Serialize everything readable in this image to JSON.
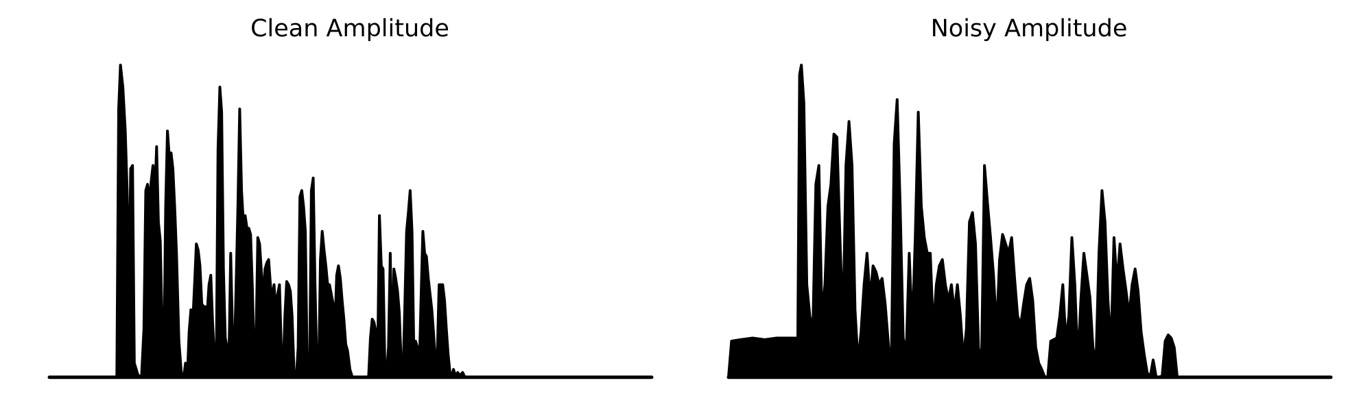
{
  "chart_data": [
    {
      "type": "area",
      "title": "Clean Amplitude",
      "xlabel": "",
      "ylabel": "",
      "axes_visible": false,
      "grid": false,
      "ylim": [
        0,
        1
      ],
      "baseline": 0.005,
      "color": "#000000",
      "segments": [
        [
          0.0,
          0.005
        ],
        [
          0.112,
          0.005
        ],
        [
          0.115,
          0.86
        ],
        [
          0.118,
          1.0
        ],
        [
          0.122,
          0.93
        ],
        [
          0.126,
          0.79
        ],
        [
          0.129,
          0.6
        ],
        [
          0.132,
          0.27
        ],
        [
          0.135,
          0.67
        ],
        [
          0.138,
          0.68
        ],
        [
          0.141,
          0.05
        ],
        [
          0.147,
          0.012
        ],
        [
          0.153,
          0.005
        ],
        [
          0.157,
          0.16
        ],
        [
          0.16,
          0.6
        ],
        [
          0.163,
          0.62
        ],
        [
          0.166,
          0.56
        ],
        [
          0.169,
          0.63
        ],
        [
          0.172,
          0.68
        ],
        [
          0.175,
          0.58
        ],
        [
          0.178,
          0.74
        ],
        [
          0.181,
          0.5
        ],
        [
          0.184,
          0.44
        ],
        [
          0.187,
          0.18
        ],
        [
          0.19,
          0.05
        ],
        [
          0.193,
          0.55
        ],
        [
          0.196,
          0.79
        ],
        [
          0.199,
          0.71
        ],
        [
          0.202,
          0.72
        ],
        [
          0.205,
          0.67
        ],
        [
          0.208,
          0.55
        ],
        [
          0.211,
          0.4
        ],
        [
          0.215,
          0.12
        ],
        [
          0.219,
          0.02
        ],
        [
          0.223,
          0.005
        ],
        [
          0.226,
          0.05
        ],
        [
          0.229,
          0.005
        ],
        [
          0.232,
          0.15
        ],
        [
          0.235,
          0.22
        ],
        [
          0.238,
          0.18
        ],
        [
          0.241,
          0.3
        ],
        [
          0.244,
          0.43
        ],
        [
          0.247,
          0.41
        ],
        [
          0.25,
          0.36
        ],
        [
          0.253,
          0.24
        ],
        [
          0.256,
          0.23
        ],
        [
          0.259,
          0.23
        ],
        [
          0.262,
          0.21
        ],
        [
          0.265,
          0.3
        ],
        [
          0.268,
          0.33
        ],
        [
          0.271,
          0.18
        ],
        [
          0.274,
          0.07
        ],
        [
          0.277,
          0.005
        ],
        [
          0.28,
          0.73
        ],
        [
          0.283,
          0.93
        ],
        [
          0.286,
          0.85
        ],
        [
          0.289,
          0.35
        ],
        [
          0.292,
          0.13
        ],
        [
          0.295,
          0.1
        ],
        [
          0.298,
          0.05
        ],
        [
          0.301,
          0.4
        ],
        [
          0.304,
          0.15
        ],
        [
          0.307,
          0.05
        ],
        [
          0.31,
          0.3
        ],
        [
          0.313,
          0.55
        ],
        [
          0.316,
          0.86
        ],
        [
          0.319,
          0.6
        ],
        [
          0.322,
          0.5
        ],
        [
          0.325,
          0.52
        ],
        [
          0.328,
          0.48
        ],
        [
          0.331,
          0.48
        ],
        [
          0.334,
          0.46
        ],
        [
          0.337,
          0.29
        ],
        [
          0.34,
          0.07
        ],
        [
          0.343,
          0.12
        ],
        [
          0.346,
          0.45
        ],
        [
          0.349,
          0.43
        ],
        [
          0.352,
          0.34
        ],
        [
          0.355,
          0.25
        ],
        [
          0.358,
          0.35
        ],
        [
          0.361,
          0.37
        ],
        [
          0.364,
          0.38
        ],
        [
          0.367,
          0.3
        ],
        [
          0.37,
          0.25
        ],
        [
          0.373,
          0.3
        ],
        [
          0.376,
          0.21
        ],
        [
          0.379,
          0.27
        ],
        [
          0.382,
          0.3
        ],
        [
          0.385,
          0.1
        ],
        [
          0.388,
          0.02
        ],
        [
          0.391,
          0.2
        ],
        [
          0.394,
          0.31
        ],
        [
          0.397,
          0.3
        ],
        [
          0.4,
          0.28
        ],
        [
          0.403,
          0.2
        ],
        [
          0.406,
          0.03
        ],
        [
          0.41,
          0.005
        ],
        [
          0.413,
          0.1
        ],
        [
          0.416,
          0.58
        ],
        [
          0.419,
          0.6
        ],
        [
          0.422,
          0.55
        ],
        [
          0.425,
          0.47
        ],
        [
          0.428,
          0.05
        ],
        [
          0.432,
          0.005
        ],
        [
          0.435,
          0.6
        ],
        [
          0.438,
          0.64
        ],
        [
          0.441,
          0.3
        ],
        [
          0.444,
          0.05
        ],
        [
          0.447,
          0.005
        ],
        [
          0.45,
          0.38
        ],
        [
          0.453,
          0.47
        ],
        [
          0.456,
          0.41
        ],
        [
          0.459,
          0.36
        ],
        [
          0.462,
          0.3
        ],
        [
          0.465,
          0.3
        ],
        [
          0.468,
          0.27
        ],
        [
          0.471,
          0.24
        ],
        [
          0.474,
          0.16
        ],
        [
          0.477,
          0.33
        ],
        [
          0.48,
          0.36
        ],
        [
          0.483,
          0.32
        ],
        [
          0.486,
          0.25
        ],
        [
          0.489,
          0.19
        ],
        [
          0.492,
          0.11
        ],
        [
          0.495,
          0.09
        ],
        [
          0.499,
          0.03
        ],
        [
          0.503,
          0.005
        ],
        [
          0.53,
          0.005
        ],
        [
          0.533,
          0.13
        ],
        [
          0.536,
          0.19
        ],
        [
          0.539,
          0.18
        ],
        [
          0.542,
          0.15
        ],
        [
          0.545,
          0.06
        ],
        [
          0.548,
          0.52
        ],
        [
          0.551,
          0.36
        ],
        [
          0.554,
          0.35
        ],
        [
          0.557,
          0.05
        ],
        [
          0.56,
          0.02
        ],
        [
          0.563,
          0.1
        ],
        [
          0.566,
          0.4
        ],
        [
          0.569,
          0.05
        ],
        [
          0.572,
          0.35
        ],
        [
          0.575,
          0.32
        ],
        [
          0.578,
          0.28
        ],
        [
          0.581,
          0.21
        ],
        [
          0.584,
          0.05
        ],
        [
          0.587,
          0.005
        ],
        [
          0.59,
          0.22
        ],
        [
          0.593,
          0.47
        ],
        [
          0.596,
          0.53
        ],
        [
          0.599,
          0.6
        ],
        [
          0.602,
          0.47
        ],
        [
          0.605,
          0.1
        ],
        [
          0.608,
          0.12
        ],
        [
          0.611,
          0.1
        ],
        [
          0.614,
          0.02
        ],
        [
          0.617,
          0.25
        ],
        [
          0.62,
          0.47
        ],
        [
          0.623,
          0.4
        ],
        [
          0.626,
          0.39
        ],
        [
          0.629,
          0.32
        ],
        [
          0.632,
          0.27
        ],
        [
          0.635,
          0.22
        ],
        [
          0.638,
          0.14
        ],
        [
          0.641,
          0.05
        ],
        [
          0.644,
          0.07
        ],
        [
          0.647,
          0.3
        ],
        [
          0.65,
          0.3
        ],
        [
          0.653,
          0.3
        ],
        [
          0.656,
          0.25
        ],
        [
          0.659,
          0.16
        ],
        [
          0.662,
          0.08
        ],
        [
          0.665,
          0.02
        ],
        [
          0.668,
          0.01
        ],
        [
          0.671,
          0.03
        ],
        [
          0.674,
          0.01
        ],
        [
          0.678,
          0.02
        ],
        [
          0.682,
          0.01
        ],
        [
          0.686,
          0.02
        ],
        [
          0.69,
          0.005
        ],
        [
          1.0,
          0.005
        ]
      ]
    },
    {
      "type": "area",
      "title": "Noisy Amplitude",
      "xlabel": "",
      "ylabel": "",
      "axes_visible": false,
      "grid": false,
      "ylim": [
        0,
        1
      ],
      "baseline": 0.005,
      "color": "#000000",
      "segments": [
        [
          0.0,
          0.005
        ],
        [
          0.005,
          0.12
        ],
        [
          0.02,
          0.125
        ],
        [
          0.04,
          0.13
        ],
        [
          0.06,
          0.125
        ],
        [
          0.08,
          0.13
        ],
        [
          0.1,
          0.13
        ],
        [
          0.115,
          0.13
        ],
        [
          0.118,
          0.97
        ],
        [
          0.121,
          1.0
        ],
        [
          0.125,
          0.88
        ],
        [
          0.13,
          0.3
        ],
        [
          0.135,
          0.2
        ],
        [
          0.14,
          0.15
        ],
        [
          0.145,
          0.62
        ],
        [
          0.15,
          0.68
        ],
        [
          0.155,
          0.2
        ],
        [
          0.16,
          0.3
        ],
        [
          0.165,
          0.55
        ],
        [
          0.17,
          0.62
        ],
        [
          0.175,
          0.78
        ],
        [
          0.18,
          0.77
        ],
        [
          0.185,
          0.45
        ],
        [
          0.19,
          0.17
        ],
        [
          0.195,
          0.68
        ],
        [
          0.2,
          0.82
        ],
        [
          0.205,
          0.68
        ],
        [
          0.21,
          0.22
        ],
        [
          0.215,
          0.05
        ],
        [
          0.22,
          0.15
        ],
        [
          0.225,
          0.3
        ],
        [
          0.23,
          0.4
        ],
        [
          0.235,
          0.25
        ],
        [
          0.24,
          0.36
        ],
        [
          0.245,
          0.34
        ],
        [
          0.25,
          0.3
        ],
        [
          0.255,
          0.32
        ],
        [
          0.26,
          0.24
        ],
        [
          0.265,
          0.12
        ],
        [
          0.27,
          0.005
        ],
        [
          0.275,
          0.75
        ],
        [
          0.28,
          0.89
        ],
        [
          0.285,
          0.55
        ],
        [
          0.29,
          0.13
        ],
        [
          0.295,
          0.08
        ],
        [
          0.3,
          0.4
        ],
        [
          0.305,
          0.15
        ],
        [
          0.31,
          0.45
        ],
        [
          0.315,
          0.85
        ],
        [
          0.32,
          0.55
        ],
        [
          0.325,
          0.45
        ],
        [
          0.33,
          0.4
        ],
        [
          0.335,
          0.4
        ],
        [
          0.34,
          0.15
        ],
        [
          0.345,
          0.3
        ],
        [
          0.35,
          0.36
        ],
        [
          0.355,
          0.38
        ],
        [
          0.36,
          0.3
        ],
        [
          0.365,
          0.25
        ],
        [
          0.37,
          0.3
        ],
        [
          0.375,
          0.21
        ],
        [
          0.38,
          0.3
        ],
        [
          0.385,
          0.2
        ],
        [
          0.39,
          0.06
        ],
        [
          0.395,
          0.16
        ],
        [
          0.4,
          0.5
        ],
        [
          0.405,
          0.53
        ],
        [
          0.41,
          0.43
        ],
        [
          0.415,
          0.1
        ],
        [
          0.42,
          0.05
        ],
        [
          0.425,
          0.68
        ],
        [
          0.43,
          0.56
        ],
        [
          0.435,
          0.45
        ],
        [
          0.44,
          0.33
        ],
        [
          0.445,
          0.15
        ],
        [
          0.45,
          0.38
        ],
        [
          0.455,
          0.46
        ],
        [
          0.46,
          0.43
        ],
        [
          0.465,
          0.4
        ],
        [
          0.47,
          0.45
        ],
        [
          0.475,
          0.32
        ],
        [
          0.48,
          0.2
        ],
        [
          0.485,
          0.17
        ],
        [
          0.49,
          0.24
        ],
        [
          0.495,
          0.3
        ],
        [
          0.5,
          0.32
        ],
        [
          0.505,
          0.25
        ],
        [
          0.51,
          0.1
        ],
        [
          0.515,
          0.05
        ],
        [
          0.52,
          0.03
        ],
        [
          0.525,
          0.005
        ],
        [
          0.53,
          0.005
        ],
        [
          0.535,
          0.12
        ],
        [
          0.545,
          0.13
        ],
        [
          0.55,
          0.2
        ],
        [
          0.555,
          0.3
        ],
        [
          0.56,
          0.12
        ],
        [
          0.565,
          0.2
        ],
        [
          0.57,
          0.45
        ],
        [
          0.575,
          0.3
        ],
        [
          0.58,
          0.05
        ],
        [
          0.585,
          0.25
        ],
        [
          0.59,
          0.4
        ],
        [
          0.595,
          0.33
        ],
        [
          0.6,
          0.26
        ],
        [
          0.605,
          0.1
        ],
        [
          0.61,
          0.05
        ],
        [
          0.615,
          0.4
        ],
        [
          0.62,
          0.6
        ],
        [
          0.625,
          0.5
        ],
        [
          0.63,
          0.25
        ],
        [
          0.635,
          0.1
        ],
        [
          0.64,
          0.45
        ],
        [
          0.645,
          0.3
        ],
        [
          0.65,
          0.43
        ],
        [
          0.655,
          0.35
        ],
        [
          0.66,
          0.28
        ],
        [
          0.665,
          0.2
        ],
        [
          0.67,
          0.3
        ],
        [
          0.675,
          0.35
        ],
        [
          0.68,
          0.28
        ],
        [
          0.685,
          0.15
        ],
        [
          0.69,
          0.08
        ],
        [
          0.695,
          0.02
        ],
        [
          0.7,
          0.005
        ],
        [
          0.705,
          0.06
        ],
        [
          0.71,
          0.005
        ],
        [
          0.715,
          0.005
        ],
        [
          0.72,
          0.01
        ],
        [
          0.725,
          0.12
        ],
        [
          0.73,
          0.14
        ],
        [
          0.735,
          0.13
        ],
        [
          0.74,
          0.1
        ],
        [
          0.745,
          0.005
        ],
        [
          1.0,
          0.005
        ]
      ]
    }
  ]
}
